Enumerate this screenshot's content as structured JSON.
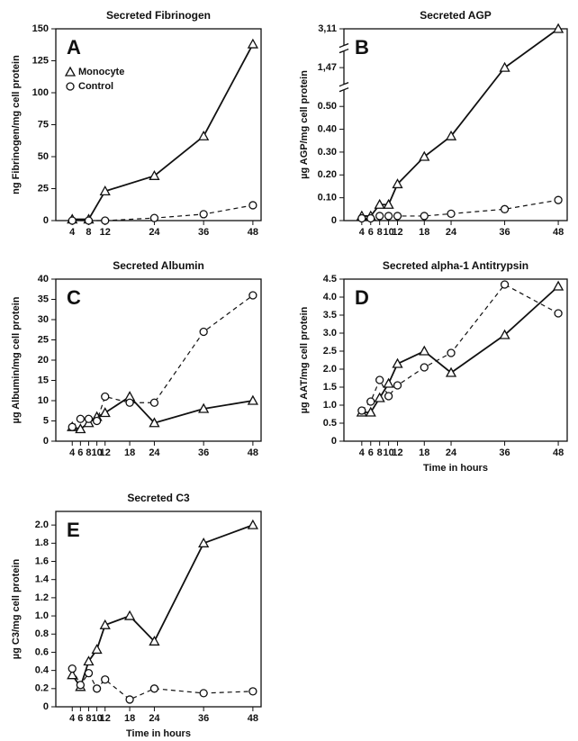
{
  "chart_data": [
    {
      "type": "line",
      "title": "Secreted Fibrinogen",
      "panel_label": "A",
      "ylabel": "ng Fibrinogen/mg cell protein",
      "x": [
        4,
        8,
        12,
        24,
        36,
        48
      ],
      "xlim": [
        0,
        50
      ],
      "xticks": [
        4,
        8,
        12,
        24,
        36,
        48
      ],
      "ylim": [
        0,
        150
      ],
      "yticks": [
        0,
        25,
        50,
        75,
        100,
        125,
        150
      ],
      "legend": "upper left",
      "series": [
        {
          "name": "Monocyte",
          "color": "#111111",
          "marker": "triangle",
          "dash": false,
          "values": [
            1,
            1,
            23,
            35,
            66,
            138
          ]
        },
        {
          "name": "Control",
          "color": "#111111",
          "marker": "circle",
          "dash": true,
          "values": [
            0,
            0,
            0,
            2,
            5,
            12
          ]
        }
      ]
    },
    {
      "type": "line",
      "title": "Secreted AGP",
      "panel_label": "B",
      "ylabel": "µg AGP/mg cell protein",
      "axis_break": true,
      "x": [
        4,
        6,
        8,
        10,
        12,
        18,
        24,
        36,
        48
      ],
      "xlim": [
        0,
        50
      ],
      "xticks": [
        4,
        6,
        8,
        10,
        12,
        18,
        24,
        36,
        48
      ],
      "ylim": [
        0,
        3.11
      ],
      "yticks": [
        0,
        {
          "value": 0.1,
          "label": "0.10"
        },
        {
          "value": 0.2,
          "label": "0.20"
        },
        {
          "value": 0.3,
          "label": "0.30"
        },
        {
          "value": 0.4,
          "label": "0.40"
        },
        {
          "value": 0.5,
          "label": "0.50"
        },
        {
          "value": 1.47,
          "label": "1,47"
        },
        {
          "value": 3.11,
          "label": "3,11"
        }
      ],
      "series": [
        {
          "color": "#111111",
          "marker": "triangle",
          "dash": false,
          "values": [
            0.02,
            0.02,
            0.07,
            0.07,
            0.16,
            0.28,
            0.37,
            1.47,
            3.11
          ]
        },
        {
          "color": "#111111",
          "marker": "circle",
          "dash": true,
          "values": [
            0.01,
            0.01,
            0.02,
            0.02,
            0.02,
            0.02,
            0.03,
            0.05,
            0.09
          ]
        }
      ]
    },
    {
      "type": "line",
      "title": "Secreted Albumin",
      "panel_label": "C",
      "ylabel": "µg Albumin/mg cell protein",
      "x": [
        4,
        6,
        8,
        10,
        12,
        18,
        24,
        36,
        48
      ],
      "xlim": [
        0,
        50
      ],
      "xticks": [
        4,
        6,
        8,
        10,
        12,
        18,
        24,
        36,
        48
      ],
      "ylim": [
        0,
        40
      ],
      "yticks": [
        0,
        5,
        10,
        15,
        20,
        25,
        30,
        35,
        40
      ],
      "series": [
        {
          "color": "#111111",
          "marker": "triangle",
          "dash": false,
          "values": [
            3.5,
            3,
            4.5,
            6,
            7,
            11,
            4.5,
            8,
            10
          ]
        },
        {
          "color": "#111111",
          "marker": "circle",
          "dash": true,
          "values": [
            3.5,
            5.5,
            5.5,
            5,
            11,
            9.5,
            9.5,
            27,
            36
          ]
        }
      ]
    },
    {
      "type": "line",
      "title": "Secreted alpha-1 Antitrypsin",
      "panel_label": "D",
      "ylabel": "µg AAT/mg cell protein",
      "xlabel": "Time in hours",
      "x": [
        4,
        6,
        8,
        10,
        12,
        18,
        24,
        36,
        48
      ],
      "xlim": [
        0,
        50
      ],
      "xticks": [
        4,
        6,
        8,
        10,
        12,
        18,
        24,
        36,
        48
      ],
      "ylim": [
        0,
        4.5
      ],
      "yticks": [
        0,
        0.5,
        {
          "value": 1,
          "label": "1.0"
        },
        1.5,
        {
          "value": 2,
          "label": "2.0"
        },
        2.5,
        {
          "value": 3,
          "label": "3.0"
        },
        3.5,
        {
          "value": 4,
          "label": "4.0"
        },
        4.5
      ],
      "series": [
        {
          "color": "#111111",
          "marker": "triangle",
          "dash": false,
          "values": [
            0.8,
            0.8,
            1.2,
            1.6,
            2.15,
            2.5,
            1.9,
            2.95,
            4.3
          ]
        },
        {
          "color": "#111111",
          "marker": "circle",
          "dash": true,
          "values": [
            0.85,
            1.1,
            1.7,
            1.25,
            1.55,
            2.05,
            2.45,
            4.35,
            3.55
          ]
        }
      ]
    },
    {
      "type": "line",
      "title": "Secreted C3",
      "panel_label": "E",
      "ylabel": "µg C3/mg cell protein",
      "xlabel": "Time in hours",
      "x": [
        4,
        6,
        8,
        10,
        12,
        18,
        24,
        36,
        48
      ],
      "xlim": [
        0,
        50
      ],
      "xticks": [
        4,
        6,
        8,
        10,
        12,
        18,
        24,
        36,
        48
      ],
      "ylim": [
        0,
        2.15
      ],
      "yticks": [
        0,
        0.2,
        0.4,
        0.6,
        0.8,
        {
          "value": 1,
          "label": "1.0"
        },
        1.2,
        1.4,
        1.6,
        1.8,
        {
          "value": 2,
          "label": "2.0"
        }
      ],
      "series": [
        {
          "color": "#111111",
          "marker": "triangle",
          "dash": false,
          "values": [
            0.35,
            0.22,
            0.5,
            0.63,
            0.9,
            1.0,
            0.72,
            1.8,
            2.0
          ]
        },
        {
          "color": "#111111",
          "marker": "circle",
          "dash": true,
          "values": [
            0.42,
            0.24,
            0.37,
            0.2,
            0.3,
            0.08,
            0.2,
            0.15,
            0.17
          ]
        }
      ]
    }
  ]
}
